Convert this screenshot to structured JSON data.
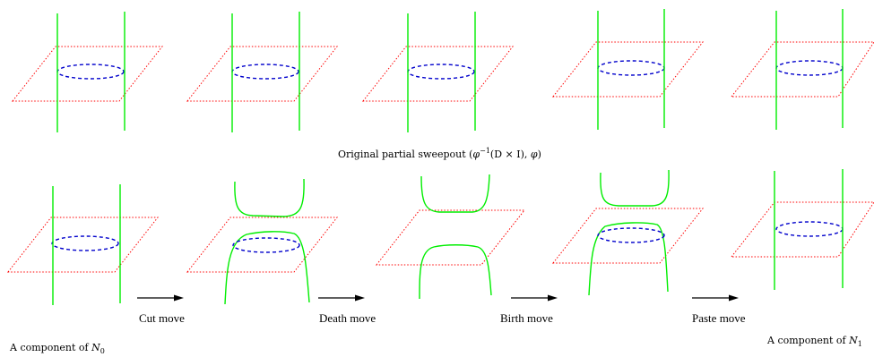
{
  "caption_top": {
    "prefix": "Original partial sweepout (",
    "phi": "φ",
    "sup": "−1",
    "middle": "(D × I), ",
    "phi2": "φ",
    "suffix": ")"
  },
  "caption_left": {
    "text": "A component of ",
    "var": "N",
    "sub": "0"
  },
  "caption_right": {
    "text": "A component of ",
    "var": "N",
    "sub": "1"
  },
  "moves": [
    "Cut move",
    "Death move",
    "Birth move",
    "Paste move"
  ],
  "colors": {
    "plane": "#ff0000",
    "disk": "#0000cc",
    "rod": "#00ee00"
  }
}
